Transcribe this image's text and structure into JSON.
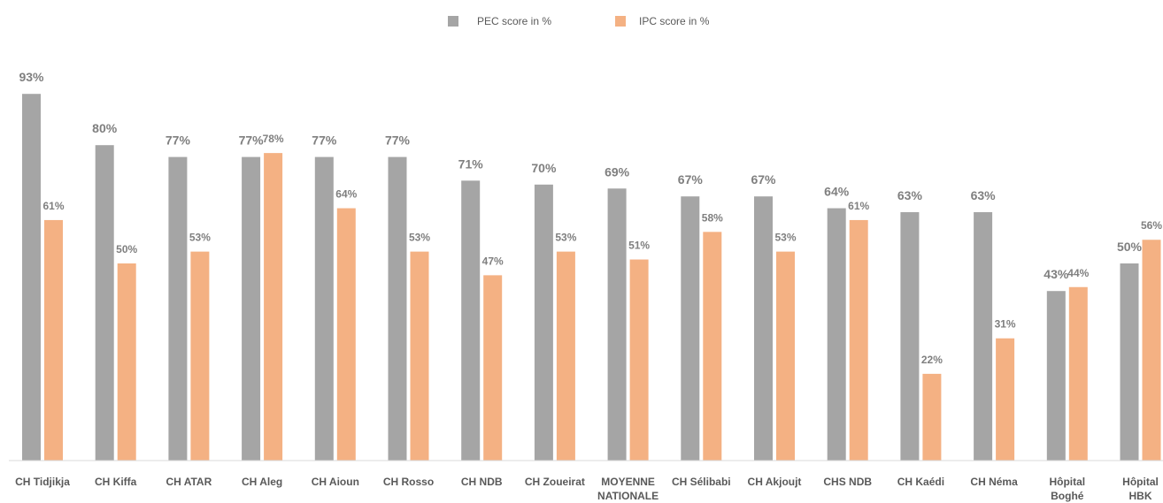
{
  "chart_data": {
    "type": "bar",
    "categories": [
      [
        "CH Tidjikja"
      ],
      [
        "CH Kiffa"
      ],
      [
        "CH ATAR"
      ],
      [
        "CH Aleg"
      ],
      [
        "CH Aioun"
      ],
      [
        "CH Rosso"
      ],
      [
        "CH NDB"
      ],
      [
        "CH Zoueirat"
      ],
      [
        "MOYENNE",
        "NATIONALE"
      ],
      [
        "CH Sélibabi"
      ],
      [
        "CH Akjoujt"
      ],
      [
        "CHS NDB"
      ],
      [
        "CH Kaédi"
      ],
      [
        "CH Néma"
      ],
      [
        "Hôpital",
        "Boghé"
      ],
      [
        "Hôpital",
        "HBK"
      ]
    ],
    "series": [
      {
        "name": "PEC score in %",
        "color": "#a5a5a5",
        "values": [
          93,
          80,
          77,
          77,
          77,
          77,
          71,
          70,
          69,
          67,
          67,
          64,
          63,
          63,
          43,
          50
        ],
        "labels": [
          "93%",
          "80%",
          "77%",
          "77%",
          "77%",
          "77%",
          "71%",
          "70%",
          "69%",
          "67%",
          "67%",
          "64%",
          "63%",
          "63%",
          "43%",
          "50%"
        ]
      },
      {
        "name": "IPC score in %",
        "color": "#f4b183",
        "values": [
          61,
          50,
          53,
          78,
          64,
          53,
          47,
          53,
          51,
          58,
          53,
          61,
          22,
          31,
          44,
          56
        ],
        "labels": [
          "61%",
          "50%",
          "53%",
          "78%",
          "64%",
          "53%",
          "47%",
          "53%",
          "51%",
          "58%",
          "53%",
          "61%",
          "22%",
          "31%",
          "44%",
          "56%"
        ]
      }
    ],
    "title": "",
    "xlabel": "",
    "ylabel": "",
    "ylim": [
      0,
      100
    ],
    "grid": false,
    "legend_position": "top-center"
  }
}
